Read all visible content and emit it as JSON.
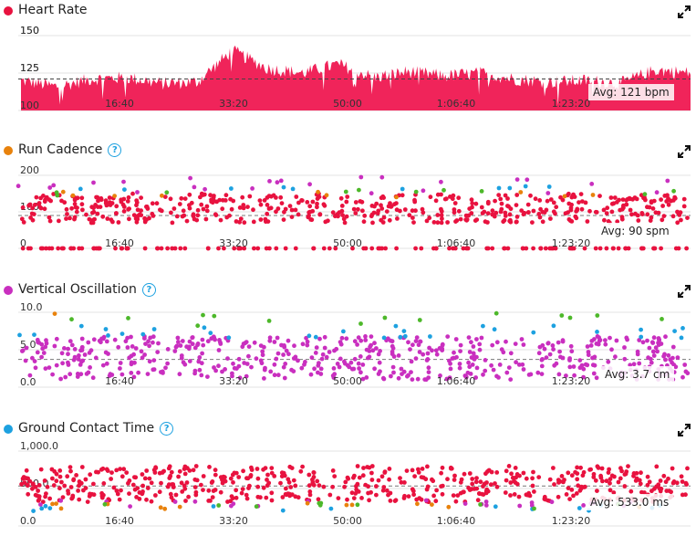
{
  "panels": [
    {
      "id": "hr",
      "title": "Heart Rate",
      "color": "#e8123f",
      "help": false,
      "avg": "Avg: 121 bpm",
      "yticks": [
        "150",
        "125",
        "100"
      ],
      "xticks": [
        "16:40",
        "33:20",
        "50:00",
        "1:06:40",
        "1:23:20"
      ]
    },
    {
      "id": "cad",
      "title": "Run Cadence",
      "color": "#e8820c",
      "help": true,
      "avg": "Avg: 90 spm",
      "yticks": [
        "200",
        "100",
        "0"
      ],
      "xticks": [
        "16:40",
        "33:20",
        "50:00",
        "1:06:40",
        "1:23:20"
      ]
    },
    {
      "id": "vo",
      "title": "Vertical Oscillation",
      "color": "#c92fbf",
      "help": true,
      "avg": "Avg: 3.7 cm",
      "yticks": [
        "10.0",
        "5.0",
        "0.0"
      ],
      "xticks": [
        "16:40",
        "33:20",
        "50:00",
        "1:06:40",
        "1:23:20"
      ]
    },
    {
      "id": "gct",
      "title": "Ground Contact Time",
      "color": "#1da1e0",
      "help": true,
      "avg": "Avg: 533.0 ms",
      "yticks": [
        "1,000.0",
        "500.0",
        "0.0"
      ],
      "xticks": [
        "16:40",
        "33:20",
        "50:00",
        "1:06:40",
        "1:23:20"
      ]
    }
  ],
  "help_glyph": "?",
  "icons": {
    "expand": "expand-icon",
    "help": "help-icon"
  },
  "chart_data": [
    {
      "type": "area",
      "title": "Heart Rate",
      "ylabel": "bpm",
      "ylim": [
        100,
        155
      ],
      "x_tick_labels": [
        "16:40",
        "33:20",
        "50:00",
        "1:06:40",
        "1:23:20"
      ],
      "x_seconds": [
        0,
        300,
        600,
        900,
        1200,
        1500,
        1800,
        2100,
        2400,
        2700,
        3000,
        3300,
        3600,
        3900,
        4200,
        4500,
        4800,
        5100,
        5400,
        5700
      ],
      "values": [
        120,
        116,
        121,
        122,
        118,
        119,
        140,
        128,
        125,
        131,
        122,
        126,
        123,
        125,
        121,
        119,
        120,
        118,
        127,
        125
      ],
      "average": 121,
      "color": "#f0245a"
    },
    {
      "type": "scatter",
      "title": "Run Cadence",
      "ylabel": "spm",
      "ylim": [
        0,
        200
      ],
      "x_tick_labels": [
        "16:40",
        "33:20",
        "50:00",
        "1:06:40",
        "1:23:20"
      ],
      "average": 90,
      "typical_range": [
        70,
        150
      ],
      "colors": {
        "main": "#e8123f",
        "high": "#c92fbf",
        "top": "#1da1e0",
        "mid": "#e8820c",
        "alt": "#4db82a"
      }
    },
    {
      "type": "scatter",
      "title": "Vertical Oscillation",
      "ylabel": "cm",
      "ylim": [
        0,
        10
      ],
      "x_tick_labels": [
        "16:40",
        "33:20",
        "50:00",
        "1:06:40",
        "1:23:20"
      ],
      "average": 3.7,
      "typical_range": [
        1,
        6.5
      ],
      "colors": {
        "main": "#c92fbf",
        "high": "#1da1e0",
        "top": "#4db82a",
        "mid": "#e8820c"
      }
    },
    {
      "type": "scatter",
      "title": "Ground Contact Time",
      "ylabel": "ms",
      "ylim": [
        0,
        1000
      ],
      "x_tick_labels": [
        "16:40",
        "33:20",
        "50:00",
        "1:06:40",
        "1:23:20"
      ],
      "average": 533.0,
      "typical_range": [
        300,
        800
      ],
      "colors": {
        "main": "#e8123f",
        "low": "#c92fbf",
        "lower": "#1da1e0",
        "mid": "#e8820c",
        "alt": "#4db82a"
      }
    }
  ]
}
